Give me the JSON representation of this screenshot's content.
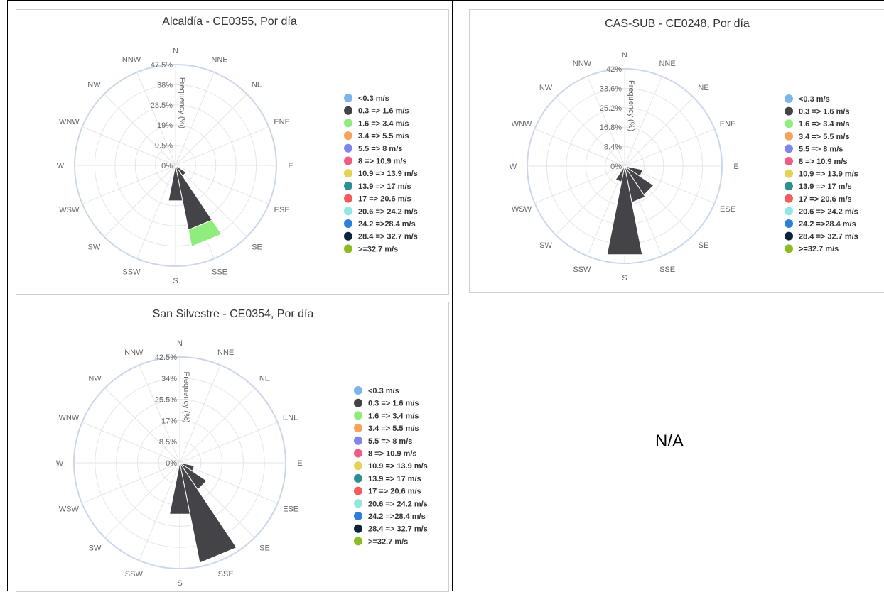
{
  "legend": [
    {
      "label": "<0.3 m/s",
      "color": "#7cb5ec"
    },
    {
      "label": "0.3 => 1.6 m/s",
      "color": "#434348"
    },
    {
      "label": "1.6 => 3.4 m/s",
      "color": "#90ed7d"
    },
    {
      "label": "3.4 => 5.5 m/s",
      "color": "#f7a35c"
    },
    {
      "label": "5.5 => 8 m/s",
      "color": "#8085e9"
    },
    {
      "label": "8 => 10.9 m/s",
      "color": "#f15c80"
    },
    {
      "label": "10.9 => 13.9 m/s",
      "color": "#e4d354"
    },
    {
      "label": "13.9 => 17 m/s",
      "color": "#2b908f"
    },
    {
      "label": "17 => 20.6 m/s",
      "color": "#f45b5b"
    },
    {
      "label": "20.6 => 24.2 m/s",
      "color": "#91e8e1"
    },
    {
      "label": "24.2 =>28.4 m/s",
      "color": "#2f7ed8"
    },
    {
      "label": "28.4 => 32.7 m/s",
      "color": "#0d233a"
    },
    {
      "label": ">=32.7 m/s",
      "color": "#8bbc21"
    }
  ],
  "na_text": "N/A",
  "chart_data": [
    {
      "type": "windrose",
      "title": "Alcaldía - CE0355, Por día",
      "ylabel": "Frequency (%)",
      "directions": [
        "N",
        "NNE",
        "NE",
        "ENE",
        "E",
        "ESE",
        "SE",
        "SSE",
        "S",
        "SSW",
        "SW",
        "WSW",
        "W",
        "WNW",
        "NW",
        "NNW"
      ],
      "radial_ticks": [
        "0%",
        "9.5%",
        "19%",
        "28.5%",
        "38%",
        "47.5%"
      ],
      "rmax": 47.5,
      "series": [
        {
          "name": "0.3 => 1.6 m/s",
          "values": [
            0,
            0,
            0,
            0,
            0,
            1.5,
            6,
            31,
            17,
            0,
            0,
            0,
            0,
            0,
            0,
            0
          ]
        },
        {
          "name": "1.6 => 3.4 m/s",
          "values": [
            0,
            0,
            0,
            0,
            0,
            0,
            0,
            8,
            0,
            0,
            0,
            0,
            0,
            0,
            0,
            0
          ]
        }
      ]
    },
    {
      "type": "windrose",
      "title": "CAS-SUB - CE0248, Por día",
      "ylabel": "Frequency (%)",
      "directions": [
        "N",
        "NNE",
        "NE",
        "ENE",
        "E",
        "ESE",
        "SE",
        "SSE",
        "S",
        "SSW",
        "SW",
        "WSW",
        "W",
        "WNW",
        "NW",
        "NNW"
      ],
      "radial_ticks": [
        "0%",
        "8.4%",
        "16.8%",
        "25.2%",
        "33.6%",
        "42%"
      ],
      "rmax": 42,
      "series": [
        {
          "name": "0.3 => 1.6 m/s",
          "values": [
            0,
            0,
            0,
            0,
            0,
            8,
            15,
            16,
            39,
            7,
            0,
            0,
            0,
            0,
            0,
            0
          ]
        }
      ]
    },
    {
      "type": "windrose",
      "title": "San Silvestre - CE0354, Por día",
      "ylabel": "Frequency (%)",
      "directions": [
        "N",
        "NNE",
        "NE",
        "ENE",
        "E",
        "ESE",
        "SE",
        "SSE",
        "S",
        "SSW",
        "SW",
        "WSW",
        "W",
        "WNW",
        "NW",
        "NNW"
      ],
      "radial_ticks": [
        "0%",
        "8.5%",
        "17%",
        "25.5%",
        "34%",
        "42.5%"
      ],
      "rmax": 42.5,
      "series": [
        {
          "name": "0.3 => 1.6 m/s",
          "values": [
            0,
            0,
            0,
            0,
            0,
            6,
            13,
            41,
            21,
            0,
            0,
            0,
            0,
            0,
            0,
            0
          ]
        }
      ]
    }
  ]
}
